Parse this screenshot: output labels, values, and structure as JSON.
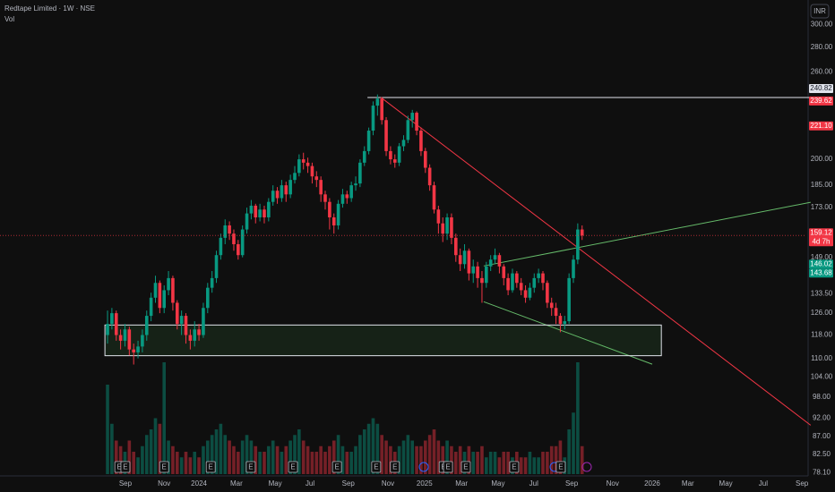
{
  "chart_data": {
    "type": "candlestick",
    "title": "Redtape Limited · 1W · NSE",
    "subtitle": "Vol",
    "currency": "INR",
    "log_scale": true,
    "grid": false,
    "up_color": "#089981",
    "down_color": "#f23645",
    "ylim": [
      77.3,
      322.7
    ],
    "yticks": [
      {
        "value": 300,
        "label": "300.00"
      },
      {
        "value": 280,
        "label": "280.00"
      },
      {
        "value": 260,
        "label": "260.00"
      },
      {
        "value": 200,
        "label": "200.00"
      },
      {
        "value": 185,
        "label": "185.00"
      },
      {
        "value": 173,
        "label": "173.00"
      },
      {
        "value": 149,
        "label": "149.00"
      },
      {
        "value": 133.5,
        "label": "133.50"
      },
      {
        "value": 126,
        "label": "126.00"
      },
      {
        "value": 118,
        "label": "118.00"
      },
      {
        "value": 110,
        "label": "110.00"
      },
      {
        "value": 104,
        "label": "104.00"
      },
      {
        "value": 98,
        "label": "98.00"
      },
      {
        "value": 92,
        "label": "92.00"
      },
      {
        "value": 87,
        "label": "87.00"
      },
      {
        "value": 82.5,
        "label": "82.50"
      },
      {
        "value": 78.1,
        "label": "78.10"
      }
    ],
    "xlim": [
      -24.7,
      160.5
    ],
    "xticks": [
      {
        "value": 4.1,
        "label": "Sep"
      },
      {
        "value": 13,
        "label": "Nov"
      },
      {
        "value": 21,
        "label": "2024"
      },
      {
        "value": 29.6,
        "label": "Mar"
      },
      {
        "value": 38.5,
        "label": "May"
      },
      {
        "value": 46.5,
        "label": "Jul"
      },
      {
        "value": 55.3,
        "label": "Sep"
      },
      {
        "value": 64.4,
        "label": "Nov"
      },
      {
        "value": 72.8,
        "label": "2025"
      },
      {
        "value": 81.3,
        "label": "Mar"
      },
      {
        "value": 89.7,
        "label": "May"
      },
      {
        "value": 97.9,
        "label": "Jul"
      },
      {
        "value": 106.6,
        "label": "Sep"
      },
      {
        "value": 116,
        "label": "Nov"
      },
      {
        "value": 125.1,
        "label": "2026"
      },
      {
        "value": 133.3,
        "label": "Mar"
      },
      {
        "value": 142,
        "label": "May"
      },
      {
        "value": 150.6,
        "label": "Jul"
      },
      {
        "value": 159.5,
        "label": "Sep"
      }
    ],
    "open": [
      118,
      122,
      126,
      118,
      116,
      120,
      113,
      112,
      114,
      118,
      125,
      132,
      138,
      128,
      135,
      140,
      130,
      122,
      125,
      118,
      116,
      120,
      118,
      128,
      136,
      140,
      150,
      158,
      164,
      160,
      155,
      150,
      162,
      170,
      174,
      168,
      172,
      168,
      176,
      182,
      178,
      185,
      180,
      188,
      192,
      200,
      198,
      196,
      190,
      188,
      180,
      176,
      168,
      164,
      175,
      180,
      178,
      185,
      186,
      198,
      205,
      218,
      235,
      240,
      225,
      205,
      200,
      198,
      208,
      212,
      225,
      230,
      218,
      205,
      195,
      185,
      172,
      165,
      160,
      168,
      158,
      150,
      146,
      152,
      142,
      145,
      140,
      138,
      145,
      148,
      150,
      145,
      140,
      135,
      142,
      138,
      135,
      132,
      136,
      140,
      142,
      138,
      130,
      128,
      125,
      122,
      123,
      140,
      148,
      162
    ],
    "high": [
      127,
      128,
      127,
      120,
      122,
      121,
      115,
      116,
      120,
      127,
      134,
      141,
      139,
      137,
      143,
      141,
      131,
      127,
      126,
      120,
      123,
      122,
      130,
      138,
      143,
      152,
      160,
      167,
      166,
      162,
      157,
      164,
      173,
      177,
      175,
      175,
      174,
      178,
      185,
      184,
      188,
      187,
      191,
      196,
      203,
      204,
      201,
      198,
      193,
      190,
      182,
      178,
      170,
      177,
      183,
      182,
      187,
      190,
      200,
      208,
      220,
      238,
      243,
      241,
      227,
      208,
      203,
      210,
      215,
      228,
      232,
      231,
      220,
      207,
      197,
      187,
      174,
      168,
      170,
      170,
      160,
      153,
      155,
      153,
      148,
      147,
      143,
      147,
      150,
      153,
      151,
      146,
      142,
      144,
      143,
      140,
      137,
      138,
      142,
      144,
      143,
      139,
      132,
      130,
      126,
      125,
      142,
      150,
      165,
      164
    ],
    "low": [
      115,
      120,
      116,
      113,
      114,
      111,
      108,
      110,
      112,
      116,
      123,
      130,
      126,
      126,
      133,
      127,
      120,
      118,
      115,
      113,
      114,
      116,
      117,
      126,
      134,
      138,
      148,
      155,
      157,
      152,
      148,
      149,
      160,
      167,
      165,
      166,
      165,
      166,
      174,
      175,
      176,
      176,
      178,
      186,
      190,
      194,
      192,
      186,
      184,
      176,
      172,
      162,
      160,
      162,
      173,
      175,
      176,
      182,
      184,
      196,
      203,
      215,
      228,
      222,
      202,
      197,
      195,
      196,
      205,
      210,
      220,
      215,
      202,
      192,
      182,
      170,
      160,
      156,
      157,
      155,
      147,
      143,
      144,
      139,
      138,
      136,
      130,
      136,
      143,
      146,
      142,
      137,
      133,
      134,
      136,
      133,
      130,
      131,
      134,
      138,
      135,
      128,
      125,
      122,
      119,
      120,
      122,
      138,
      146,
      157
    ],
    "close": [
      122,
      126,
      118,
      116,
      120,
      113,
      112,
      114,
      118,
      125,
      132,
      138,
      128,
      135,
      140,
      130,
      122,
      125,
      118,
      116,
      120,
      118,
      128,
      136,
      140,
      150,
      158,
      164,
      160,
      155,
      150,
      162,
      170,
      174,
      168,
      172,
      168,
      176,
      182,
      178,
      185,
      180,
      188,
      192,
      200,
      198,
      196,
      190,
      188,
      180,
      176,
      168,
      164,
      175,
      180,
      178,
      185,
      186,
      198,
      205,
      218,
      235,
      240,
      225,
      205,
      200,
      198,
      208,
      212,
      225,
      230,
      218,
      205,
      195,
      185,
      172,
      165,
      160,
      168,
      158,
      150,
      146,
      152,
      142,
      145,
      140,
      138,
      145,
      148,
      150,
      145,
      140,
      135,
      142,
      138,
      135,
      132,
      136,
      140,
      142,
      138,
      130,
      128,
      125,
      122,
      123,
      140,
      148,
      162,
      159.12
    ],
    "volume": [
      80,
      45,
      30,
      25,
      20,
      30,
      20,
      15,
      25,
      35,
      40,
      50,
      45,
      100,
      30,
      25,
      20,
      15,
      20,
      15,
      20,
      15,
      25,
      30,
      35,
      40,
      45,
      35,
      30,
      25,
      20,
      30,
      35,
      30,
      25,
      20,
      20,
      25,
      30,
      25,
      20,
      25,
      30,
      35,
      40,
      30,
      25,
      20,
      20,
      25,
      20,
      25,
      30,
      35,
      25,
      20,
      20,
      25,
      35,
      40,
      45,
      50,
      45,
      35,
      30,
      25,
      20,
      25,
      30,
      35,
      30,
      25,
      25,
      30,
      35,
      40,
      30,
      25,
      30,
      25,
      20,
      25,
      20,
      25,
      20,
      20,
      25,
      15,
      20,
      20,
      15,
      20,
      20,
      15,
      20,
      15,
      15,
      20,
      15,
      15,
      20,
      20,
      25,
      25,
      30,
      15,
      40,
      55,
      100,
      25
    ],
    "vlim": [
      0,
      100
    ],
    "price_labels": [
      {
        "value": 240.82,
        "label": "240.82",
        "kind": "white"
      },
      {
        "value": 239.62,
        "label": "239.62",
        "kind": "red"
      },
      {
        "value": 221.1,
        "label": "221.10",
        "kind": "red"
      },
      {
        "value": 159.12,
        "label": "159.12",
        "kind": "red",
        "sub": "4d 7h"
      },
      {
        "value": 146.02,
        "label": "146.02",
        "kind": "green"
      },
      {
        "value": 143.68,
        "label": "143.68",
        "kind": "green"
      }
    ],
    "events": {
      "label": "E",
      "x": [
        2.7,
        4.1,
        13,
        23.7,
        32.9,
        42.6,
        52.7,
        61.7,
        66,
        77.2,
        78.2,
        82.3,
        93.4,
        104.1
      ]
    },
    "drawings": [
      {
        "kind": "line",
        "color": "#e0e3eb",
        "x": [
          59.7,
          161.5
        ],
        "y": [
          240.82,
          240.82
        ]
      },
      {
        "kind": "line",
        "color": "#f23645",
        "x": [
          62.8,
          161.5
        ],
        "y": [
          240.82,
          90
        ]
      },
      {
        "kind": "line",
        "color": "#66bb6a",
        "x": [
          86.4,
          161.5
        ],
        "y": [
          145.2,
          175.8
        ]
      },
      {
        "kind": "line",
        "color": "#66bb6a",
        "x": [
          86.4,
          125.1
        ],
        "y": [
          130.4,
          108.1
        ]
      },
      {
        "kind": "box",
        "color": "#e0e3eb",
        "x": [
          -0.6,
          127.2
        ],
        "y": [
          121.6,
          110.9
        ]
      }
    ]
  }
}
